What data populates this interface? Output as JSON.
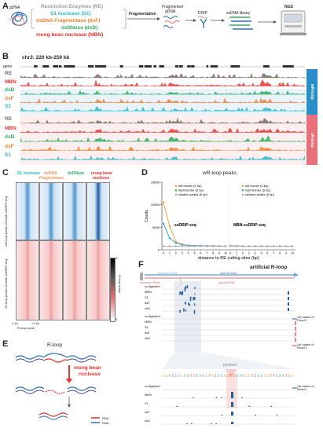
{
  "panelA": {
    "letter": "A",
    "gdna": "gDNA",
    "re_title": "Restriction Enzymes (RE)",
    "s1": "S1 nuclease (S1)",
    "dsf": "dsDNA Fragmentase (dsF)",
    "dsd": "dsDNase (dsD)",
    "mbn": "mung bean nuclease (MBN)",
    "fragmentation": "Fragmentation",
    "fragmented": "Fragmented",
    "fragmented2": "gDNA",
    "drip": "DRIP",
    "ssdna": "ssDNA library",
    "ngs": "NGS"
  },
  "panelB": {
    "letter": "B",
    "title": "chr3: 220 kb-259 kb",
    "gene": "gene",
    "tracks_wr": [
      "RE",
      "MBN",
      "dsD",
      "dsF",
      "S1"
    ],
    "tracks_cr": [
      "RE",
      "MBN",
      "dsD",
      "dsF",
      "S1"
    ],
    "tab_wr": "wR-loop",
    "tab_cr": "cR-loop"
  },
  "panelC": {
    "letter": "C",
    "col_s1": "S1 nuclease",
    "col_dsf1": "dsDNA",
    "col_dsf2": "Fragmentase",
    "col_dsd": "dsDNase",
    "col_mbn1": "mung bean",
    "col_mbn2": "nuclease",
    "row_wr": "wR-loop peaks of basic ssDRIP-seq",
    "row_cr": "cR-loop peaks of basic ssDRIP-seq",
    "scale_hi": "4",
    "scale_lo": "0",
    "scale_label": "R-loop reads",
    "x_left": "-1 kb",
    "x_right": "+1 kb",
    "x_peak": "R-loop peak"
  },
  "panelD": {
    "letter": "D",
    "sub_left": "ssDRIP-seq",
    "sub_right": "MBN-ssDRIP-seq",
    "legend": [
      "left border (5 bp)",
      "right border (5 bp)",
      "random peaks (5 bp)"
    ]
  },
  "chart_data": {
    "type": "line",
    "title": "wR-loop peaks",
    "xlabel": "distance to RE cutting sites (bp)",
    "ylabel": "Counts",
    "yticks": [
      "0",
      "5000",
      "10000",
      "15000"
    ],
    "ylim": [
      0,
      15000
    ],
    "x": [
      0,
      1,
      2,
      3,
      4,
      5,
      6,
      7,
      8,
      9,
      10
    ],
    "xticks": [
      "0",
      "1",
      "2",
      "3",
      "4",
      "5",
      "6",
      "7",
      "8",
      "9",
      "10"
    ],
    "panels": [
      {
        "name": "ssDRIP-seq",
        "series": [
          {
            "name": "left border (5 bp)",
            "color": "#f39c2b",
            "values": [
              10500,
              5200,
              1800,
              1200,
              1000,
              900,
              900,
              850,
              850,
              800,
              800
            ]
          },
          {
            "name": "right border (5 bp)",
            "color": "#2e9fd8",
            "values": [
              5800,
              2600,
              1500,
              1100,
              950,
              900,
              880,
              850,
              840,
              820,
              800
            ]
          },
          {
            "name": "random peaks (5 bp)",
            "color": "#aaaaaa",
            "values": [
              800,
              800,
              800,
              800,
              800,
              800,
              800,
              800,
              800,
              800,
              800
            ]
          }
        ]
      },
      {
        "name": "MBN-ssDRIP-seq",
        "series": [
          {
            "name": "left border (5 bp)",
            "color": "#f39c2b",
            "values": [
              900,
              850,
              820,
              800,
              800,
              800,
              800,
              800,
              800,
              800,
              800
            ]
          },
          {
            "name": "right border (5 bp)",
            "color": "#2e9fd8",
            "values": [
              850,
              820,
              800,
              800,
              800,
              800,
              800,
              800,
              800,
              800,
              800
            ]
          },
          {
            "name": "random peaks (5 bp)",
            "color": "#aaaaaa",
            "values": [
              800,
              800,
              800,
              800,
              800,
              800,
              800,
              800,
              800,
              800,
              800
            ]
          }
        ]
      }
    ]
  },
  "panelE": {
    "letter": "E",
    "rloop": "R-loop",
    "enzyme1": "mung bean",
    "enzyme2": "nuclease",
    "rna": "RNA",
    "dna": "DNA"
  },
  "panelF": {
    "letter": "F",
    "title": "artificial R-loop",
    "paired_top": "paired DNA",
    "paired_rna": "paired RNA",
    "unpaired": "unpaired RNA",
    "tracks_top": [
      "undigested",
      "MBN",
      "S1",
      "dsF",
      "dsD"
    ],
    "tracks_mid": [
      "undigested",
      "MBN",
      "S1",
      "dsF",
      "dsD"
    ],
    "read1": "1st bases of",
    "read1b": "Read 1",
    "read2": "1st bases of",
    "read2b": "Read 2",
    "junction": "junction",
    "seq": "GGATCCGAATTCACGTGCACGGTGCACGGTCACGGTTCAATGG",
    "tracks_bot": [
      "undigested",
      "MBN",
      "S1",
      "dsF",
      "dsD"
    ],
    "read1c": "1st bases of",
    "read1d": "Read 1"
  },
  "colors": {
    "re": "#7a6a63",
    "mbn": "#e8322f",
    "dsd": "#2fae62",
    "dsf": "#f07f2a",
    "s1": "#27b8c8",
    "wr_tab": "#2a8fc9",
    "cr_tab": "#e8707a",
    "blue": "#2e9fd8",
    "orange": "#f39c2b"
  }
}
